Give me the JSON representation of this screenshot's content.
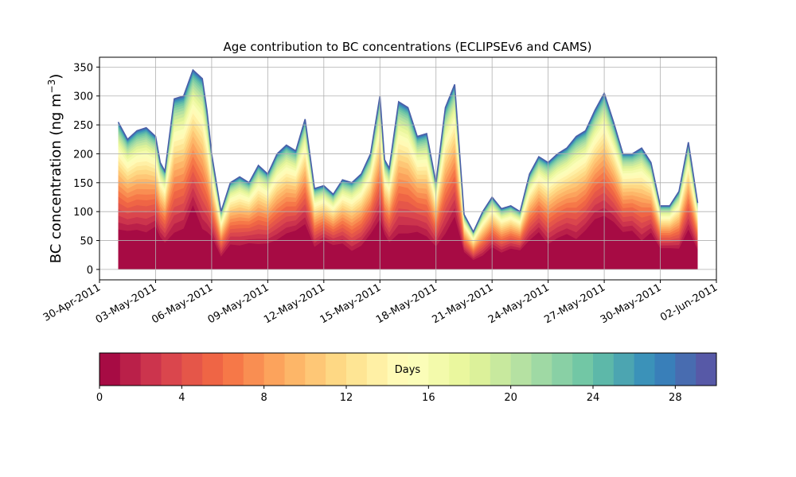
{
  "chart_data": {
    "type": "area",
    "title": "Age contribution to BC concentrations (ECLIPSEv6 and CAMS)",
    "xlabel": "",
    "ylabel": "BC concentration (ng m",
    "ylabel_sup": "−3",
    "ylabel_suffix": ")",
    "ylim": [
      -18,
      367
    ],
    "xlim": [
      "2011-04-30T00:00",
      "2011-06-02T00:00"
    ],
    "grid": true,
    "x_ticks": [
      "30-Apr-2011",
      "03-May-2011",
      "06-May-2011",
      "09-May-2011",
      "12-May-2011",
      "15-May-2011",
      "18-May-2011",
      "21-May-2011",
      "24-May-2011",
      "27-May-2011",
      "30-May-2011",
      "02-Jun-2011"
    ],
    "y_ticks": [
      0,
      50,
      100,
      150,
      200,
      250,
      300,
      350
    ],
    "total_series": {
      "name": "",
      "x": [
        "2011-05-01T00:00",
        "2011-05-01T12:00",
        "2011-05-02T00:00",
        "2011-05-02T12:00",
        "2011-05-03T00:00",
        "2011-05-03T06:00",
        "2011-05-03T12:00",
        "2011-05-04T00:00",
        "2011-05-04T12:00",
        "2011-05-05T00:00",
        "2011-05-05T12:00",
        "2011-05-05T18:00",
        "2011-05-06T00:00",
        "2011-05-06T12:00",
        "2011-05-07T00:00",
        "2011-05-07T12:00",
        "2011-05-08T00:00",
        "2011-05-08T12:00",
        "2011-05-09T00:00",
        "2011-05-09T12:00",
        "2011-05-10T00:00",
        "2011-05-10T12:00",
        "2011-05-11T00:00",
        "2011-05-11T12:00",
        "2011-05-12T00:00",
        "2011-05-12T12:00",
        "2011-05-13T00:00",
        "2011-05-13T12:00",
        "2011-05-14T00:00",
        "2011-05-14T12:00",
        "2011-05-15T00:00",
        "2011-05-15T06:00",
        "2011-05-15T12:00",
        "2011-05-16T00:00",
        "2011-05-16T12:00",
        "2011-05-17T00:00",
        "2011-05-17T12:00",
        "2011-05-18T00:00",
        "2011-05-18T12:00",
        "2011-05-19T00:00",
        "2011-05-19T12:00",
        "2011-05-20T00:00",
        "2011-05-20T12:00",
        "2011-05-21T00:00",
        "2011-05-21T12:00",
        "2011-05-22T00:00",
        "2011-05-22T12:00",
        "2011-05-23T00:00",
        "2011-05-23T12:00",
        "2011-05-24T00:00",
        "2011-05-24T12:00",
        "2011-05-25T00:00",
        "2011-05-25T12:00",
        "2011-05-26T00:00",
        "2011-05-26T12:00",
        "2011-05-27T00:00",
        "2011-05-27T12:00",
        "2011-05-28T00:00",
        "2011-05-28T12:00",
        "2011-05-29T00:00",
        "2011-05-29T12:00",
        "2011-05-30T00:00",
        "2011-05-30T12:00",
        "2011-05-31T00:00",
        "2011-05-31T12:00",
        "2011-06-01T00:00"
      ],
      "values": [
        255,
        225,
        240,
        245,
        230,
        185,
        170,
        295,
        300,
        345,
        330,
        275,
        200,
        100,
        150,
        160,
        150,
        180,
        165,
        200,
        215,
        205,
        260,
        140,
        145,
        130,
        155,
        150,
        165,
        200,
        300,
        190,
        175,
        290,
        280,
        230,
        235,
        150,
        280,
        320,
        95,
        65,
        100,
        125,
        105,
        110,
        100,
        165,
        195,
        185,
        200,
        210,
        230,
        240,
        275,
        305,
        255,
        200,
        200,
        210,
        185,
        110,
        110,
        135,
        220,
        115
      ]
    },
    "colorbar": {
      "label": "Days",
      "ticks": [
        0,
        4,
        8,
        12,
        16,
        20,
        24,
        28
      ],
      "range": [
        0,
        30
      ],
      "colormap": "Spectral",
      "bands": 30
    }
  }
}
